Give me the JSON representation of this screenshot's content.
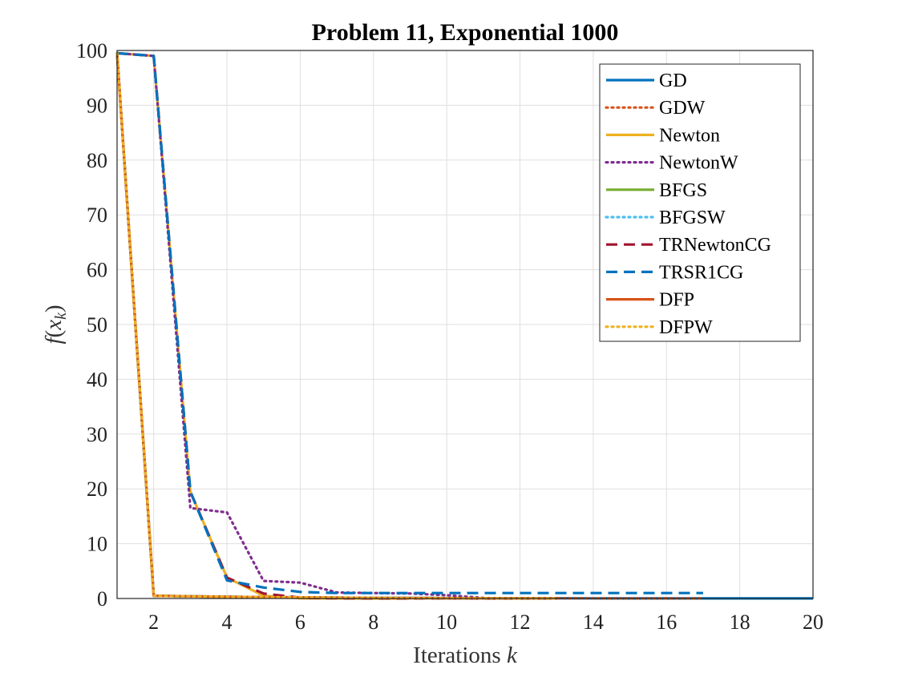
{
  "chart_data": {
    "type": "line",
    "title": "Problem 11, Exponential 1000",
    "xlabel": "Iterations k",
    "ylabel": "f(x_k)",
    "xlim": [
      1,
      20
    ],
    "ylim": [
      0,
      100
    ],
    "xticks": [
      2,
      4,
      6,
      8,
      10,
      12,
      14,
      16,
      18,
      20
    ],
    "yticks": [
      0,
      10,
      20,
      30,
      40,
      50,
      60,
      70,
      80,
      90,
      100
    ],
    "grid": true,
    "legend_position": "top-right",
    "series": [
      {
        "name": "GD",
        "color": "#0072BD",
        "style": "solid",
        "x": [
          1,
          2,
          3,
          4,
          5,
          6,
          7,
          8,
          9,
          10,
          11,
          12,
          13,
          14,
          15,
          16,
          17,
          18,
          19,
          20
        ],
        "y": [
          99.5,
          0.5,
          0.4,
          0.3,
          0.25,
          0.2,
          0.15,
          0.12,
          0.1,
          0.08,
          0.06,
          0.05,
          0.04,
          0.03,
          0.02,
          0.02,
          0.01,
          0.01,
          0.01,
          0.01
        ]
      },
      {
        "name": "GDW",
        "color": "#D95319",
        "style": "dotted",
        "x": [
          1,
          2,
          3,
          4,
          5,
          6,
          7,
          8,
          9,
          10,
          11,
          12,
          13,
          14,
          15,
          16,
          17
        ],
        "y": [
          99.5,
          0.5,
          0.4,
          0.3,
          0.25,
          0.2,
          0.15,
          0.12,
          0.1,
          0.08,
          0.06,
          0.05,
          0.04,
          0.03,
          0.02,
          0.02,
          0.01
        ]
      },
      {
        "name": "Newton",
        "color": "#EDB120",
        "style": "solid",
        "x": [
          1,
          2,
          3,
          4,
          5,
          6,
          7,
          8,
          9
        ],
        "y": [
          99.5,
          99,
          19.5,
          3.8,
          0.5,
          0.05,
          0.01,
          0.0,
          0.0
        ]
      },
      {
        "name": "NewtonW",
        "color": "#7E2F8E",
        "style": "dotted",
        "x": [
          1,
          2,
          3,
          4,
          5,
          6,
          7,
          8,
          9,
          10,
          11
        ],
        "y": [
          99.5,
          99,
          16.5,
          15.7,
          3.2,
          2.9,
          1.1,
          1.0,
          0.9,
          0.6,
          0.1
        ]
      },
      {
        "name": "BFGS",
        "color": "#77AC30",
        "style": "solid",
        "x": [
          1,
          2,
          3,
          4,
          5,
          6,
          7,
          8,
          9,
          10,
          11,
          12,
          13
        ],
        "y": [
          99.5,
          0.5,
          0.4,
          0.3,
          0.25,
          0.2,
          0.15,
          0.1,
          0.08,
          0.06,
          0.04,
          0.02,
          0.01
        ]
      },
      {
        "name": "BFGSW",
        "color": "#4DBEEE",
        "style": "dotted",
        "x": [
          1,
          2,
          3,
          4,
          5,
          6,
          7,
          8,
          9,
          10,
          11,
          12,
          13
        ],
        "y": [
          99.5,
          0.5,
          0.4,
          0.3,
          0.25,
          0.2,
          0.15,
          0.1,
          0.08,
          0.06,
          0.04,
          0.02,
          0.01
        ]
      },
      {
        "name": "TRNewtonCG",
        "color": "#A2142F",
        "style": "dashed",
        "x": [
          1,
          2,
          3,
          4,
          5,
          6,
          7,
          8,
          9,
          10,
          11,
          12,
          13
        ],
        "y": [
          99.5,
          99,
          19.5,
          3.8,
          0.9,
          0.15,
          0.05,
          0.02,
          0.01,
          0.01,
          0.0,
          0.0,
          0.0
        ]
      },
      {
        "name": "TRSR1CG",
        "color": "#0072BD",
        "style": "dashed",
        "x": [
          1,
          2,
          3,
          4,
          5,
          6,
          7,
          8,
          9,
          10,
          11,
          12,
          13,
          14,
          15,
          16,
          17
        ],
        "y": [
          99.5,
          99,
          19.5,
          3.3,
          2.0,
          1.2,
          1.0,
          1.0,
          1.0,
          1.0,
          1.0,
          1.0,
          1.0,
          1.0,
          1.0,
          1.0,
          1.0
        ]
      },
      {
        "name": "DFP",
        "color": "#D95319",
        "style": "solid",
        "x": [
          1,
          2,
          3,
          4,
          5,
          6,
          7,
          8,
          9,
          10,
          11,
          12,
          13
        ],
        "y": [
          99.5,
          0.5,
          0.4,
          0.3,
          0.25,
          0.2,
          0.15,
          0.1,
          0.08,
          0.06,
          0.04,
          0.02,
          0.01
        ]
      },
      {
        "name": "DFPW",
        "color": "#EDB120",
        "style": "dotted",
        "x": [
          1,
          2,
          3,
          4,
          5,
          6,
          7,
          8,
          9,
          10,
          11,
          12,
          13
        ],
        "y": [
          99.5,
          0.5,
          0.4,
          0.3,
          0.25,
          0.2,
          0.15,
          0.1,
          0.08,
          0.06,
          0.04,
          0.02,
          0.01
        ]
      }
    ]
  }
}
